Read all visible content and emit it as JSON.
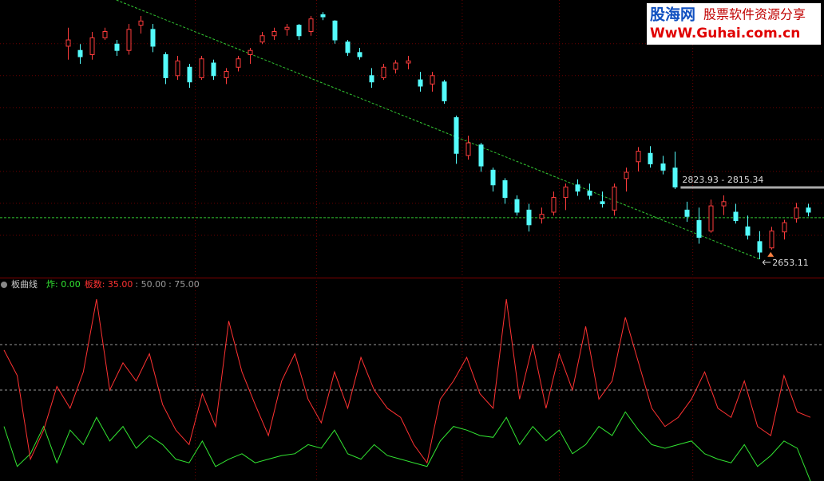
{
  "chart_data": [
    {
      "type": "candlestick",
      "up_color": "#ff3c3c",
      "down_color": "#54fcfc",
      "ohlc": [
        [
          3160,
          3204,
          3128,
          3175
        ],
        [
          3150,
          3165,
          3118,
          3135
        ],
        [
          3140,
          3194,
          3128,
          3180
        ],
        [
          3180,
          3204,
          3175,
          3195
        ],
        [
          3165,
          3175,
          3137,
          3150
        ],
        [
          3150,
          3213,
          3140,
          3200
        ],
        [
          3210,
          3232,
          3190,
          3220
        ],
        [
          3200,
          3213,
          3146,
          3160
        ],
        [
          3140,
          3146,
          3070,
          3085
        ],
        [
          3090,
          3137,
          3080,
          3125
        ],
        [
          3110,
          3118,
          3061,
          3075
        ],
        [
          3085,
          3137,
          3080,
          3130
        ],
        [
          3120,
          3128,
          3080,
          3090
        ],
        [
          3085,
          3108,
          3070,
          3100
        ],
        [
          3110,
          3137,
          3100,
          3130
        ],
        [
          3140,
          3156,
          3118,
          3150
        ],
        [
          3170,
          3194,
          3165,
          3185
        ],
        [
          3185,
          3204,
          3175,
          3195
        ],
        [
          3200,
          3213,
          3185,
          3205
        ],
        [
          3210,
          3213,
          3175,
          3185
        ],
        [
          3195,
          3232,
          3185,
          3225
        ],
        [
          3235,
          3241,
          3222,
          3230
        ],
        [
          3220,
          3222,
          3166,
          3175
        ],
        [
          3170,
          3175,
          3137,
          3145
        ],
        [
          3145,
          3156,
          3128,
          3135
        ],
        [
          3090,
          3108,
          3061,
          3075
        ],
        [
          3085,
          3118,
          3080,
          3110
        ],
        [
          3105,
          3127,
          3095,
          3120
        ],
        [
          3120,
          3137,
          3105,
          3125
        ],
        [
          3080,
          3099,
          3052,
          3065
        ],
        [
          3070,
          3099,
          3052,
          3090
        ],
        [
          3075,
          3080,
          3023,
          3030
        ],
        [
          2990,
          2995,
          2880,
          2905
        ],
        [
          2900,
          2947,
          2890,
          2930
        ],
        [
          2925,
          2930,
          2861,
          2875
        ],
        [
          2865,
          2871,
          2814,
          2830
        ],
        [
          2840,
          2846,
          2785,
          2800
        ],
        [
          2795,
          2805,
          2757,
          2765
        ],
        [
          2770,
          2785,
          2719,
          2735
        ],
        [
          2750,
          2776,
          2738,
          2760
        ],
        [
          2765,
          2814,
          2757,
          2800
        ],
        [
          2800,
          2833,
          2770,
          2825
        ],
        [
          2830,
          2843,
          2804,
          2815
        ],
        [
          2815,
          2833,
          2795,
          2805
        ],
        [
          2790,
          2814,
          2776,
          2785
        ],
        [
          2770,
          2833,
          2757,
          2825
        ],
        [
          2845,
          2871,
          2814,
          2860
        ],
        [
          2885,
          2920,
          2862,
          2910
        ],
        [
          2905,
          2922,
          2871,
          2880
        ],
        [
          2880,
          2899,
          2855,
          2865
        ],
        [
          2870,
          2909,
          2820,
          2825
        ],
        [
          2770,
          2790,
          2742,
          2755
        ],
        [
          2745,
          2776,
          2690,
          2705
        ],
        [
          2720,
          2795,
          2716,
          2780
        ],
        [
          2780,
          2805,
          2758,
          2790
        ],
        [
          2765,
          2785,
          2738,
          2745
        ],
        [
          2730,
          2757,
          2700,
          2710
        ],
        [
          2695,
          2720,
          2653.11,
          2670
        ],
        [
          2680,
          2730,
          2676,
          2720
        ],
        [
          2718,
          2747,
          2700,
          2740
        ],
        [
          2750,
          2787,
          2740,
          2775
        ],
        [
          2775,
          2785,
          2755,
          2765
        ]
      ],
      "ylim": [
        2615,
        3270
      ],
      "grid_values": [
        3166,
        3090,
        3014,
        2938,
        2862,
        2786,
        2710
      ],
      "xgrid_index": [
        10.5,
        20.5,
        32.5,
        40.5,
        51.5
      ],
      "hline": {
        "value": 2752,
        "color": "#32c832"
      },
      "trendline": {
        "x": [
          4,
          57
        ],
        "values": [
          3270,
          2653.11
        ],
        "color": "#32c832"
      },
      "range_annotation": {
        "text": "2823.93 - 2815.34",
        "value": 2823.93,
        "start": 50.5
      },
      "low_annotation": {
        "text": "2653.11",
        "value": 2653.11,
        "index": 57
      },
      "watermark": {
        "title": "股海网",
        "subtitle": "股票软件资源分享",
        "url": "WwW.Guhai.com.cn"
      }
    },
    {
      "type": "line",
      "title": "板曲线",
      "ylim": [
        0,
        111
      ],
      "levels": [
        {
          "value": 50,
          "label": ": 50.00"
        },
        {
          "value": 75,
          "label": ": 75.00"
        }
      ],
      "series": [
        {
          "name": "炸",
          "color": "#32e632",
          "value_label": ": 0.00",
          "values": [
            30,
            8,
            15,
            30,
            10,
            28,
            20,
            35,
            22,
            30,
            18,
            25,
            20,
            12,
            10,
            22,
            8,
            12,
            15,
            10,
            12,
            14,
            15,
            20,
            18,
            28,
            15,
            12,
            20,
            14,
            12,
            10,
            8,
            22,
            30,
            28,
            25,
            24,
            35,
            20,
            30,
            22,
            28,
            15,
            20,
            30,
            25,
            38,
            28,
            20,
            18,
            20,
            22,
            15,
            12,
            10,
            20,
            8,
            14,
            22,
            18,
            0
          ]
        },
        {
          "name": "板数",
          "color": "#ff3232",
          "value_label": ": 35.00",
          "values": [
            72,
            58,
            12,
            28,
            52,
            40,
            60,
            100,
            50,
            65,
            55,
            70,
            42,
            28,
            20,
            48,
            30,
            88,
            60,
            42,
            25,
            55,
            70,
            45,
            32,
            60,
            40,
            68,
            50,
            40,
            35,
            20,
            10,
            45,
            55,
            68,
            48,
            40,
            100,
            45,
            75,
            40,
            70,
            50,
            85,
            45,
            55,
            90,
            65,
            40,
            30,
            35,
            45,
            60,
            40,
            35,
            55,
            30,
            25,
            58,
            38,
            35
          ]
        }
      ]
    }
  ]
}
